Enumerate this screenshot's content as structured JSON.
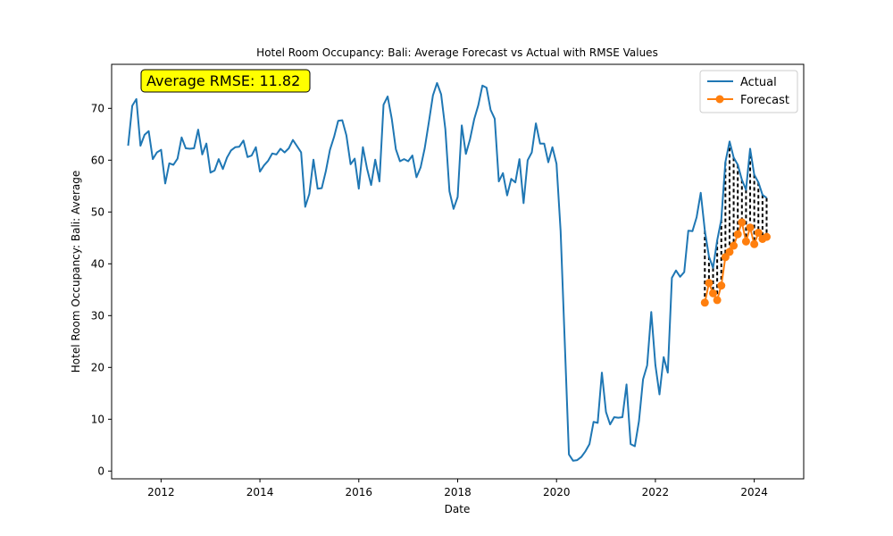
{
  "chart_data": {
    "type": "line",
    "title": "Hotel Room Occupancy: Bali: Average Forecast vs Actual with RMSE Values",
    "xlabel": "Date",
    "ylabel": "Hotel Room Occupancy: Bali: Average",
    "xlim": [
      "2011-01-01",
      "2024-12-31"
    ],
    "ylim": [
      -1.5,
      78.5
    ],
    "x_ticks": [
      "2012",
      "2014",
      "2016",
      "2018",
      "2020",
      "2022",
      "2024"
    ],
    "y_ticks": [
      0,
      10,
      20,
      30,
      40,
      50,
      60,
      70
    ],
    "grid": false,
    "legend": {
      "position": "top-right",
      "entries": [
        "Actual",
        "Forecast"
      ]
    },
    "annotation": "Average RMSE: 11.82",
    "colors": {
      "actual": "#1f77b4",
      "forecast": "#ff7f0e",
      "error_lines": "#000000",
      "annotation_bg": "#ffff00"
    },
    "series": [
      {
        "name": "Actual",
        "x": [
          "2011-05",
          "2011-06",
          "2011-07",
          "2011-08",
          "2011-09",
          "2011-10",
          "2011-11",
          "2011-12",
          "2012-01",
          "2012-02",
          "2012-03",
          "2012-04",
          "2012-05",
          "2012-06",
          "2012-07",
          "2012-08",
          "2012-09",
          "2012-10",
          "2012-11",
          "2012-12",
          "2013-01",
          "2013-02",
          "2013-03",
          "2013-04",
          "2013-05",
          "2013-06",
          "2013-07",
          "2013-08",
          "2013-09",
          "2013-10",
          "2013-11",
          "2013-12",
          "2014-01",
          "2014-02",
          "2014-03",
          "2014-04",
          "2014-05",
          "2014-06",
          "2014-07",
          "2014-08",
          "2014-09",
          "2014-10",
          "2014-11",
          "2014-12",
          "2015-01",
          "2015-02",
          "2015-03",
          "2015-04",
          "2015-05",
          "2015-06",
          "2015-07",
          "2015-08",
          "2015-09",
          "2015-10",
          "2015-11",
          "2015-12",
          "2016-01",
          "2016-02",
          "2016-03",
          "2016-04",
          "2016-05",
          "2016-06",
          "2016-07",
          "2016-08",
          "2016-09",
          "2016-10",
          "2016-11",
          "2016-12",
          "2017-01",
          "2017-02",
          "2017-03",
          "2017-04",
          "2017-05",
          "2017-06",
          "2017-07",
          "2017-08",
          "2017-09",
          "2017-10",
          "2017-11",
          "2017-12",
          "2018-01",
          "2018-02",
          "2018-03",
          "2018-04",
          "2018-05",
          "2018-06",
          "2018-07",
          "2018-08",
          "2018-09",
          "2018-10",
          "2018-11",
          "2018-12",
          "2019-01",
          "2019-02",
          "2019-03",
          "2019-04",
          "2019-05",
          "2019-06",
          "2019-07",
          "2019-08",
          "2019-09",
          "2019-10",
          "2019-11",
          "2019-12",
          "2020-01",
          "2020-02",
          "2020-03",
          "2020-04",
          "2020-05",
          "2020-06",
          "2020-07",
          "2020-08",
          "2020-09",
          "2020-10",
          "2020-11",
          "2020-12",
          "2021-01",
          "2021-02",
          "2021-03",
          "2021-04",
          "2021-05",
          "2021-06",
          "2021-07",
          "2021-08",
          "2021-09",
          "2021-10",
          "2021-11",
          "2021-12",
          "2022-01",
          "2022-02",
          "2022-03",
          "2022-04",
          "2022-05",
          "2022-06",
          "2022-07",
          "2022-08",
          "2022-09",
          "2022-10",
          "2022-11",
          "2022-12",
          "2023-01",
          "2023-02",
          "2023-03",
          "2023-04",
          "2023-05",
          "2023-06",
          "2023-07",
          "2023-08",
          "2023-09",
          "2023-10",
          "2023-11",
          "2023-12",
          "2024-01",
          "2024-02",
          "2024-03",
          "2024-04"
        ],
        "values": [
          62.8,
          70.5,
          71.8,
          62.8,
          64.9,
          65.6,
          60.2,
          61.5,
          62.0,
          55.5,
          59.4,
          59.1,
          60.3,
          64.4,
          62.3,
          62.2,
          62.3,
          65.9,
          61.1,
          63.2,
          57.6,
          58.0,
          60.2,
          58.3,
          60.5,
          61.9,
          62.5,
          62.6,
          63.8,
          60.6,
          60.9,
          62.5,
          57.8,
          59.0,
          59.9,
          61.3,
          61.1,
          62.2,
          61.5,
          62.3,
          63.9,
          62.7,
          61.5,
          51.0,
          53.5,
          60.1,
          54.5,
          54.6,
          57.9,
          62.0,
          64.5,
          67.6,
          67.7,
          64.8,
          59.2,
          60.3,
          54.5,
          62.5,
          58.4,
          55.2,
          60.1,
          55.9,
          70.7,
          72.3,
          68.0,
          62.1,
          59.8,
          60.2,
          59.8,
          60.9,
          56.7,
          58.6,
          62.3,
          67.3,
          72.5,
          74.9,
          72.7,
          66.0,
          54.0,
          50.6,
          52.9,
          66.7,
          61.2,
          64.0,
          67.9,
          70.6,
          74.4,
          74.0,
          69.7,
          68.0,
          55.9,
          57.5,
          53.2,
          56.4,
          55.7,
          60.2,
          51.7,
          60.0,
          61.5,
          67.1,
          63.2,
          63.2,
          59.6,
          62.5,
          59.3,
          46.3,
          25.0,
          3.2,
          2.0,
          2.1,
          2.7,
          3.8,
          5.2,
          9.5,
          9.3,
          19.0,
          11.4,
          9.0,
          10.4,
          10.3,
          10.4,
          16.7,
          5.2,
          4.8,
          9.6,
          17.7,
          20.4,
          30.7,
          20.5,
          14.8,
          22.0,
          19.0,
          37.3,
          38.7,
          37.5,
          38.4,
          46.4,
          46.3,
          49.0,
          53.7,
          46.4,
          41.4,
          39.2,
          44.5,
          48.5,
          59.6,
          63.6,
          60.5,
          59.1,
          56.2,
          54.3,
          62.2,
          57.2,
          55.7,
          53.3,
          52.7
        ]
      },
      {
        "name": "Forecast",
        "x": [
          "2023-01",
          "2023-02",
          "2023-03",
          "2023-04",
          "2023-05",
          "2023-06",
          "2023-07",
          "2023-08",
          "2023-09",
          "2023-10",
          "2023-11",
          "2023-12",
          "2024-01",
          "2024-02",
          "2024-03",
          "2024-04"
        ],
        "values": [
          32.5,
          36.3,
          34.3,
          33.0,
          35.8,
          41.3,
          42.3,
          43.5,
          45.7,
          48.0,
          44.3,
          47.0,
          43.8,
          46.0,
          44.8,
          45.2
        ]
      }
    ]
  }
}
